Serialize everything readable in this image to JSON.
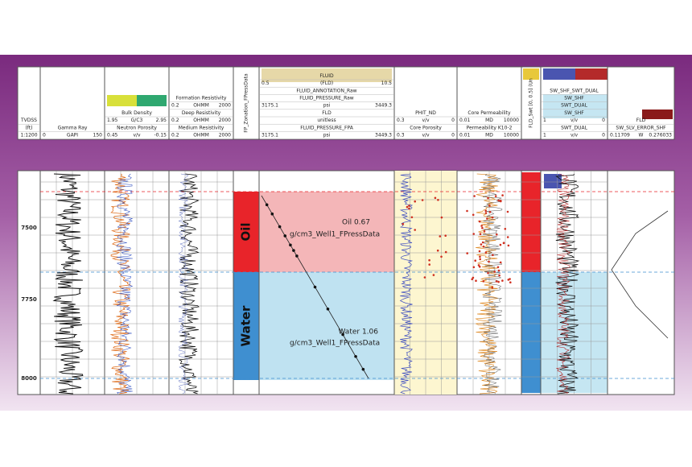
{
  "header": {
    "tracks": [
      {
        "rows": [
          [
            "TVDSS"
          ],
          [
            "(ft)"
          ],
          [
            "1:1200"
          ]
        ]
      },
      {
        "rows": [
          [
            "Gamma Ray"
          ],
          [
            "0",
            "GAPI",
            "150"
          ]
        ]
      },
      {
        "rows": [
          {
            "text": [
              "Bulk Density"
            ],
            "color": "#d03020"
          },
          {
            "text": [
              "1.95",
              "G/C3",
              "2.95"
            ],
            "color": "#d03020"
          },
          {
            "text": [
              "Neutron Porosity"
            ],
            "color": "#3050c0"
          },
          {
            "text": [
              "0.45",
              "v/v",
              "-0.15"
            ],
            "color": "#3050c0"
          }
        ]
      },
      {
        "rows": [
          [
            "Formation Resistivity"
          ],
          [
            "0.2",
            "OHMM",
            "2000"
          ],
          {
            "text": [
              "Deep Resistivity"
            ],
            "color": "#3050c0"
          },
          {
            "text": [
              "0.2",
              "OHMM",
              "2000"
            ],
            "color": "#3050c0"
          },
          {
            "text": [
              "Medium Resistivity"
            ],
            "color": "#e07020"
          },
          {
            "text": [
              "0.2",
              "OHMM",
              "2000"
            ],
            "color": "#e07020"
          }
        ]
      },
      {
        "vertical": "FP_Zonation_FPressData"
      },
      {
        "rows": [
          [
            "FLUID"
          ],
          [
            "0.5",
            "(FLD)",
            "10.5"
          ],
          [
            "FLUID_ANNOTATION_Raw"
          ],
          [
            "FLUID_PRESSURE_Raw"
          ],
          [
            "3175.1",
            "psi",
            "3449.3"
          ],
          [
            "FLD"
          ],
          [
            "unitless"
          ],
          [
            "FLUID_PRESSURE_FPA"
          ],
          [
            "3175.1",
            "psi",
            "3449.3"
          ]
        ]
      },
      {
        "rows": [
          [
            "PHIT_ND"
          ],
          [
            "0.3",
            "v/v",
            "0"
          ],
          {
            "text": [
              "Core Porosity"
            ],
            "color": "#d03020"
          },
          {
            "text": [
              "0.3",
              "v/v",
              "0"
            ],
            "color": "#d03020"
          }
        ]
      },
      {
        "rows": [
          {
            "text": [
              "Core Permeability"
            ],
            "color": "#d03020"
          },
          [
            "0.01",
            "MD",
            "10000"
          ],
          {
            "text": [
              "Permeability K10-2"
            ],
            "color": "#e07020"
          },
          {
            "text": [
              "0.01",
              "MD",
              "10000"
            ],
            "color": "#e07020"
          }
        ]
      },
      {
        "vertical": "FLD_Swt [0, 0.5] (Un"
      },
      {
        "rows": [
          [
            "SW_SHF_SWT_DUAL"
          ],
          [
            "SW_SHF"
          ],
          [
            "SWT_DUAL"
          ],
          [
            "SW_SHF"
          ],
          [
            "1",
            "v/v",
            "0"
          ],
          [
            "SWT_DUAL"
          ],
          [
            "1",
            "v/v",
            "0"
          ]
        ]
      },
      {
        "rows": [
          [
            "FLD"
          ],
          [
            "SW_SLV_ERROR_SHF"
          ],
          [
            "0.11709",
            "W",
            "0.276033"
          ]
        ]
      }
    ]
  },
  "log": {
    "depths": [
      "7500",
      "7750",
      "8000"
    ],
    "zones": [
      "Oil",
      "Water"
    ],
    "annotations": [
      "Oil 0.67",
      "g/cm3_Well1_FPressData",
      "Water 1.06",
      "g/cm3_Well1_FPressData"
    ]
  }
}
